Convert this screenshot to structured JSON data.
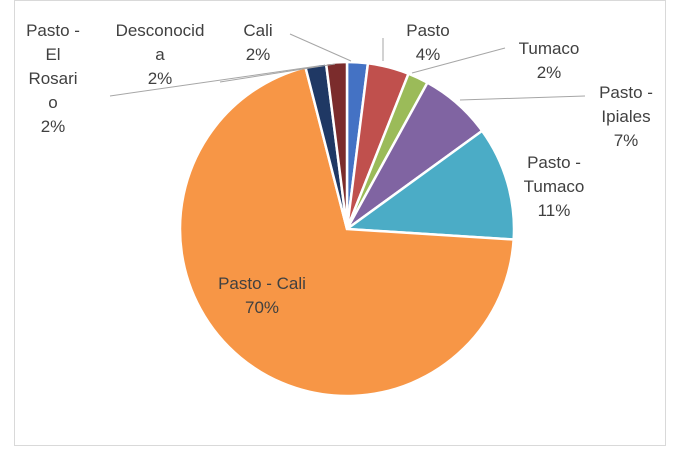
{
  "chart_data": {
    "type": "pie",
    "title": "",
    "legend": "none",
    "slices": [
      {
        "name": "Cali",
        "value": 2,
        "label": "2%",
        "color": "#4472c4"
      },
      {
        "name": "Pasto",
        "value": 4,
        "label": "4%",
        "color": "#c0504d"
      },
      {
        "name": "Tumaco",
        "value": 2,
        "label": "2%",
        "color": "#9bbb59"
      },
      {
        "name": "Pasto - Ipiales",
        "value": 7,
        "label": "7%",
        "color": "#8064a2"
      },
      {
        "name": "Pasto - Tumaco",
        "value": 11,
        "label": "11%",
        "color": "#4bacc6"
      },
      {
        "name": "Pasto - Cali",
        "value": 70,
        "label": "70%",
        "color": "#f79646"
      },
      {
        "name": "Pasto - El Rosario",
        "value": 2,
        "label": "2%",
        "color": "#1f3864"
      },
      {
        "name": "Desconocida",
        "value": 2,
        "label": "2%",
        "color": "#7b2c2c"
      }
    ],
    "label_lines": {
      "Cali": [
        "Cali",
        "2%"
      ],
      "Pasto": [
        "Pasto",
        "4%"
      ],
      "Tumaco": [
        "Tumaco",
        "2%"
      ],
      "Pasto - Ipiales": [
        "Pasto -",
        "Ipiales",
        "7%"
      ],
      "Pasto - Tumaco": [
        "Pasto -",
        "Tumaco",
        "11%"
      ],
      "Pasto - Cali": [
        "Pasto - Cali",
        "70%"
      ],
      "Pasto - El Rosario": [
        "Pasto -",
        "El",
        "Rosari",
        "o",
        "2%"
      ],
      "Desconocida": [
        "Desconocid",
        "a",
        "2%"
      ]
    }
  }
}
